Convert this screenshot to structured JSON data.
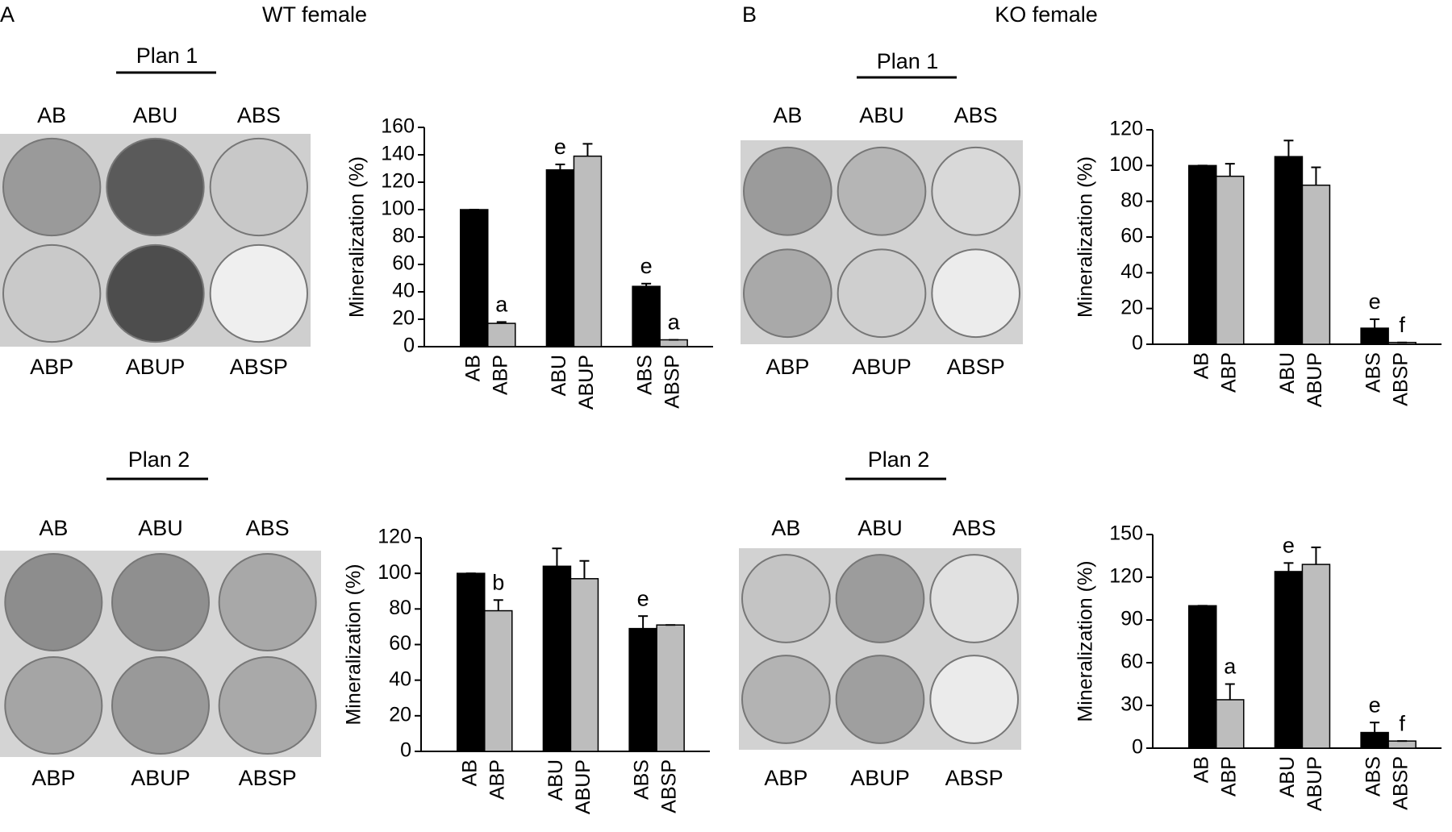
{
  "figure": {
    "panels": [
      {
        "letter": "A",
        "title": "WT female",
        "plates": [
          {
            "heading": "Plan 1",
            "top_labels": [
              "AB",
              "ABU",
              "ABS"
            ],
            "bottom_labels": [
              "ABP",
              "ABUP",
              "ABSP"
            ]
          },
          {
            "heading": "Plan 2",
            "top_labels": [
              "AB",
              "ABU",
              "ABS"
            ],
            "bottom_labels": [
              "ABP",
              "ABUP",
              "ABSP"
            ]
          }
        ]
      },
      {
        "letter": "B",
        "title": "KO female",
        "plates": [
          {
            "heading": "Plan 1",
            "top_labels": [
              "AB",
              "ABU",
              "ABS"
            ],
            "bottom_labels": [
              "ABP",
              "ABUP",
              "ABSP"
            ]
          },
          {
            "heading": "Plan 2",
            "top_labels": [
              "AB",
              "ABU",
              "ABS"
            ],
            "bottom_labels": [
              "ABP",
              "ABUP",
              "ABSP"
            ]
          }
        ]
      }
    ]
  },
  "chart_data": [
    {
      "type": "bar",
      "y_label": "Mineralization (%)",
      "categories": [
        "AB",
        "ABP",
        "ABU",
        "ABUP",
        "ABS",
        "ABSP"
      ],
      "values": [
        100,
        17,
        129,
        139,
        44,
        5
      ],
      "errors": [
        0,
        1,
        4,
        9,
        2,
        0
      ],
      "annotations": [
        null,
        "a",
        "e",
        null,
        "e",
        "a"
      ],
      "colors": [
        "#000000",
        "#bdbdbd",
        "#000000",
        "#bdbdbd",
        "#000000",
        "#bdbdbd"
      ],
      "ylim": [
        0,
        160
      ],
      "yticks": [
        0,
        20,
        40,
        60,
        80,
        100,
        120,
        140,
        160
      ]
    },
    {
      "type": "bar",
      "y_label": "Mineralization (%)",
      "categories": [
        "AB",
        "ABP",
        "ABU",
        "ABUP",
        "ABS",
        "ABSP"
      ],
      "values": [
        100,
        79,
        104,
        97,
        69,
        71
      ],
      "errors": [
        0,
        6,
        10,
        10,
        7,
        0
      ],
      "annotations": [
        null,
        "b",
        null,
        null,
        "e",
        null
      ],
      "colors": [
        "#000000",
        "#bdbdbd",
        "#000000",
        "#bdbdbd",
        "#000000",
        "#bdbdbd"
      ],
      "ylim": [
        0,
        120
      ],
      "yticks": [
        0,
        20,
        40,
        60,
        80,
        100,
        120
      ]
    },
    {
      "type": "bar",
      "y_label": "Mineralization (%)",
      "categories": [
        "AB",
        "ABP",
        "ABU",
        "ABUP",
        "ABS",
        "ABSP"
      ],
      "values": [
        100,
        94,
        105,
        89,
        9,
        1
      ],
      "errors": [
        0,
        7,
        9,
        10,
        5,
        0
      ],
      "annotations": [
        null,
        null,
        null,
        null,
        "e",
        "f"
      ],
      "colors": [
        "#000000",
        "#bdbdbd",
        "#000000",
        "#bdbdbd",
        "#000000",
        "#bdbdbd"
      ],
      "ylim": [
        0,
        120
      ],
      "yticks": [
        0,
        20,
        40,
        60,
        80,
        100,
        120
      ]
    },
    {
      "type": "bar",
      "y_label": "Mineralization (%)",
      "categories": [
        "AB",
        "ABP",
        "ABU",
        "ABUP",
        "ABS",
        "ABSP"
      ],
      "values": [
        100,
        34,
        124,
        129,
        11,
        5
      ],
      "errors": [
        0,
        11,
        6,
        12,
        7,
        0
      ],
      "annotations": [
        null,
        "a",
        "e",
        null,
        "e",
        "f"
      ],
      "colors": [
        "#000000",
        "#bdbdbd",
        "#000000",
        "#bdbdbd",
        "#000000",
        "#bdbdbd"
      ],
      "ylim": [
        0,
        150
      ],
      "yticks": [
        0,
        30,
        60,
        90,
        120,
        150
      ]
    }
  ]
}
